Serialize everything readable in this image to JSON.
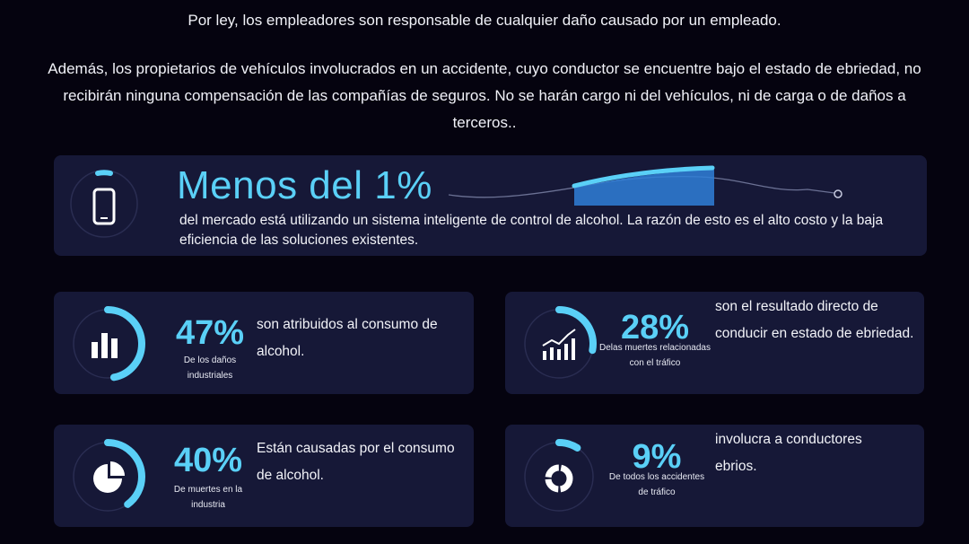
{
  "intro": {
    "line1": "Por ley, los empleadores son responsable de cualquier daño causado por un empleado.",
    "line2": "Además, los propietarios de vehículos involucrados en un accidente, cuyo conductor se encuentre bajo el estado de ebriedad, no recibirán ninguna compensación de las compañías de seguros. No se harán cargo ni del vehículos, ni de carga o de daños a terceros.."
  },
  "hero": {
    "headline": "Menos del 1%",
    "description": "del mercado está utilizando un sistema inteligente de control de alcohol. La razón de esto es el alto costo y la baja eficiencia de las soluciones existentes.",
    "icon": "smartphone-icon"
  },
  "stats": [
    {
      "value": "47%",
      "caption": "De los daños industriales",
      "text": "son atribuidos al consumo de alcohol.",
      "ring_fraction": 0.47,
      "icon": "bar-chart-icon"
    },
    {
      "value": "28%",
      "caption": "Delas muertes relacionadas con el tráfico",
      "text": "son el resultado directo de conducir en estado de ebriedad.",
      "ring_fraction": 0.28,
      "icon": "trend-chart-icon"
    },
    {
      "value": "40%",
      "caption": "De muertes en la industria",
      "text": "Están causadas por el consumo de alcohol.",
      "ring_fraction": 0.4,
      "icon": "pie-chart-icon"
    },
    {
      "value": "9%",
      "caption": "De todos los accidentes de tráfico",
      "text": "involucra a conductores ebrios.",
      "ring_fraction": 0.09,
      "icon": "donut-chart-icon"
    }
  ],
  "colors": {
    "accent": "#5ad0f7",
    "card": "#161837",
    "background": "#05030f",
    "ring_track": "#2a2d52"
  }
}
